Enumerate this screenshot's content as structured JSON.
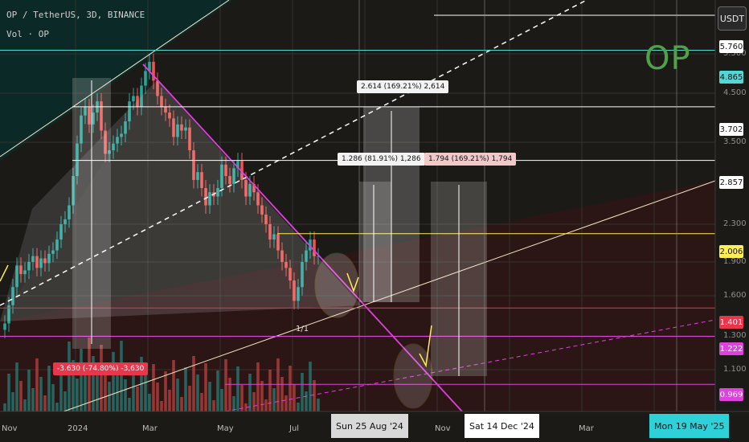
{
  "header": {
    "symbol_line": "OP / TetherUS, 3D, BINANCE",
    "volume_line": "Vol · OP"
  },
  "currency_button": "USDT",
  "watermark": "OP",
  "x_axis": {
    "labels": [
      "Nov",
      "2024",
      "Mar",
      "May",
      "Jul",
      "Nov",
      "Mar"
    ],
    "highlighted": [
      {
        "label": "Sun 25 Aug '24",
        "bg": "#d9d9d9",
        "fg": "#111111"
      },
      {
        "label": "Sat 14 Dec '24",
        "bg": "#ffffff",
        "fg": "#111111"
      },
      {
        "label": "Mon 19 May '25",
        "bg": "#2fd1d9",
        "fg": "#111111"
      }
    ],
    "partial_label": "5"
  },
  "price_badges": [
    {
      "value": "5.760",
      "bg": "#ffffff",
      "fg": "#111"
    },
    {
      "value": "4.865",
      "bg": "#4fd8d8",
      "fg": "#111"
    },
    {
      "value": "3.702",
      "bg": "#ffffff",
      "fg": "#111"
    },
    {
      "value": "2.857",
      "bg": "#ffffff",
      "fg": "#111"
    },
    {
      "value": "2.006",
      "bg": "#ffee55",
      "fg": "#111"
    },
    {
      "value": "1.401",
      "bg": "#e8364a",
      "fg": "#fff"
    },
    {
      "value": "1.222",
      "bg": "#e040e0",
      "fg": "#fff"
    },
    {
      "value": "0.969",
      "bg": "#e040e0",
      "fg": "#fff"
    }
  ],
  "y_axis_ticks": [
    "5.500",
    "4.500",
    "3.500",
    "2.300",
    "1.900",
    "1.600",
    "1.300",
    "1.100"
  ],
  "measure_boxes": [
    {
      "text": "2.614 (169.21%) 2,614",
      "bg": "#f2f2f2",
      "fg": "#111"
    },
    {
      "text": "1.286 (81.91%) 1,286",
      "bg": "#f2f2f2",
      "fg": "#111"
    },
    {
      "text": "1.794 (169.21%) 1,794",
      "bg": "#f2c9c9",
      "fg": "#111"
    },
    {
      "text": "-3.630 (-74.80%) -3,630",
      "bg": "#e8364a",
      "fg": "#fff"
    }
  ],
  "annotation": "1/1",
  "colors": {
    "background": "#1b1a17",
    "bull": "#26a69a",
    "bear": "#ef5350",
    "downtrend": "#e040e0",
    "channel": "#f5e6c8",
    "cyan_level": "#4fd8d8",
    "yellow_level": "#ffee55",
    "red_level": "#e8364a"
  },
  "chart_data": {
    "type": "candlestick",
    "symbol": "OP / TetherUS",
    "interval": "3D",
    "exchange": "BINANCE",
    "ylim": [
      0.85,
      6.2
    ],
    "y_scale": "log",
    "horizontal_levels": [
      5.76,
      4.865,
      3.702,
      2.857,
      2.006,
      1.401,
      1.222,
      0.969
    ],
    "y_ticks": [
      5.5,
      4.5,
      3.5,
      2.3,
      1.9,
      1.6,
      1.3,
      1.1
    ],
    "measurements": [
      {
        "change": 2.614,
        "percent": 169.21
      },
      {
        "change": 1.286,
        "percent": 81.91
      },
      {
        "change": 1.794,
        "percent": 169.21
      },
      {
        "change": -3.63,
        "percent": -74.8
      }
    ],
    "approx_closes": [
      1.3,
      1.42,
      1.55,
      1.72,
      1.65,
      1.68,
      1.75,
      1.8,
      1.7,
      1.78,
      1.74,
      1.82,
      1.85,
      1.95,
      2.1,
      2.15,
      2.3,
      2.65,
      3.1,
      3.55,
      3.7,
      3.4,
      3.6,
      3.8,
      3.3,
      2.95,
      3.0,
      3.1,
      3.2,
      3.25,
      3.45,
      3.8,
      3.9,
      3.7,
      4.1,
      4.4,
      4.6,
      4.2,
      3.9,
      3.7,
      3.6,
      3.5,
      3.2,
      3.4,
      3.3,
      3.35,
      3.0,
      2.6,
      2.7,
      2.5,
      2.3,
      2.45,
      2.4,
      2.5,
      2.8,
      2.65,
      2.55,
      2.75,
      2.85,
      2.6,
      2.4,
      2.55,
      2.45,
      2.3,
      2.2,
      2.1,
      1.95,
      2.0,
      1.85,
      1.75,
      1.7,
      1.6,
      1.45,
      1.55,
      1.75,
      1.85,
      1.95,
      1.8,
      1.8
    ]
  }
}
